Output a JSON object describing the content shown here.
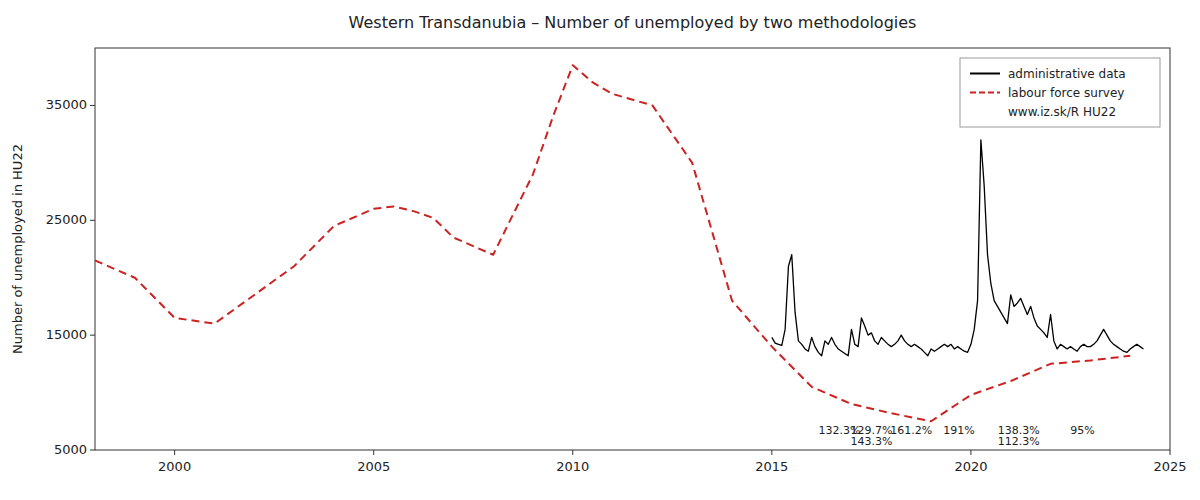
{
  "chart_data": {
    "type": "line",
    "title": "Western Transdanubia – Number of unemployed  by two methodologies",
    "y_label": "Number of unemployed in HU22",
    "xlim": [
      1998.0,
      2025.0
    ],
    "ylim": [
      5000,
      40000
    ],
    "xticks": [
      2000,
      2005,
      2010,
      2015,
      2020,
      2025
    ],
    "yticks": [
      5000,
      15000,
      25000,
      35000
    ],
    "grid": false,
    "legend": "upper right",
    "source_label": "www.iz.sk/R HU22",
    "series": [
      {
        "name": "administrative data",
        "color": "#000000",
        "line_style": "solid",
        "x": [
          2015.0,
          2015.083,
          2015.167,
          2015.25,
          2015.333,
          2015.417,
          2015.5,
          2015.583,
          2015.667,
          2015.75,
          2015.833,
          2015.917,
          2016.0,
          2016.083,
          2016.167,
          2016.25,
          2016.333,
          2016.417,
          2016.5,
          2016.583,
          2016.667,
          2016.75,
          2016.833,
          2016.917,
          2017.0,
          2017.083,
          2017.167,
          2017.25,
          2017.333,
          2017.417,
          2017.5,
          2017.583,
          2017.667,
          2017.75,
          2017.833,
          2017.917,
          2018.0,
          2018.083,
          2018.167,
          2018.25,
          2018.333,
          2018.417,
          2018.5,
          2018.583,
          2018.667,
          2018.75,
          2018.833,
          2018.917,
          2019.0,
          2019.083,
          2019.167,
          2019.25,
          2019.333,
          2019.417,
          2019.5,
          2019.583,
          2019.667,
          2019.75,
          2019.833,
          2019.917,
          2020.0,
          2020.083,
          2020.167,
          2020.25,
          2020.333,
          2020.417,
          2020.5,
          2020.583,
          2020.667,
          2020.75,
          2020.833,
          2020.917,
          2021.0,
          2021.083,
          2021.167,
          2021.25,
          2021.333,
          2021.417,
          2021.5,
          2021.583,
          2021.667,
          2021.75,
          2021.833,
          2021.917,
          2022.0,
          2022.083,
          2022.167,
          2022.25,
          2022.333,
          2022.417,
          2022.5,
          2022.583,
          2022.667,
          2022.75,
          2022.833,
          2022.917,
          2023.0,
          2023.083,
          2023.167,
          2023.25,
          2023.333,
          2023.417,
          2023.5,
          2023.583,
          2023.667,
          2023.75,
          2023.833,
          2023.917,
          2024.0,
          2024.083,
          2024.167,
          2024.25,
          2024.333
        ],
        "values": [
          14800,
          14300,
          14200,
          14100,
          15500,
          21000,
          22000,
          17000,
          14500,
          14200,
          13800,
          13600,
          14800,
          14000,
          13500,
          13200,
          14500,
          14200,
          14800,
          14200,
          13800,
          13600,
          13400,
          13200,
          15500,
          14200,
          14000,
          16500,
          15800,
          15000,
          15200,
          14500,
          14200,
          14800,
          14500,
          14200,
          14000,
          14200,
          14500,
          15000,
          14500,
          14200,
          14000,
          14200,
          14000,
          13800,
          13500,
          13200,
          13800,
          13600,
          13800,
          14000,
          14200,
          14000,
          14200,
          13800,
          14000,
          13800,
          13600,
          13500,
          14200,
          15500,
          18000,
          32000,
          28000,
          22000,
          19500,
          18000,
          17500,
          17000,
          16500,
          16000,
          18500,
          17500,
          17800,
          18200,
          17500,
          16800,
          17500,
          16500,
          15800,
          15500,
          15200,
          14800,
          16800,
          14500,
          13800,
          14200,
          14000,
          13800,
          14000,
          13800,
          13600,
          14000,
          14200,
          14000,
          14000,
          14200,
          14500,
          15000,
          15500,
          15000,
          14500,
          14200,
          14000,
          13800,
          13600,
          13500,
          13800,
          14000,
          14200,
          14000,
          13800
        ]
      },
      {
        "name": "labour force survey",
        "color": "#cc2222",
        "line_style": "dashed",
        "x": [
          1998.0,
          1999.0,
          2000.0,
          2001.0,
          2002.0,
          2003.0,
          2004.0,
          2005.0,
          2005.5,
          2006.0,
          2006.5,
          2007.0,
          2008.0,
          2009.0,
          2009.5,
          2010.0,
          2010.5,
          2011.0,
          2012.0,
          2013.0,
          2014.0,
          2015.0,
          2016.0,
          2017.0,
          2018.0,
          2019.0,
          2020.0,
          2021.0,
          2022.0,
          2023.0,
          2024.0
        ],
        "values": [
          21500,
          20000,
          16500,
          16000,
          18500,
          21000,
          24500,
          26000,
          26200,
          25800,
          25200,
          23500,
          22000,
          29000,
          34000,
          38500,
          37000,
          36000,
          35000,
          30000,
          18000,
          14000,
          10500,
          9000,
          8200,
          7500,
          9800,
          11000,
          12500,
          12800,
          13200
        ]
      }
    ],
    "annotations": [
      {
        "x": 2016.7,
        "y": 6400,
        "label": "132.3%"
      },
      {
        "x": 2017.5,
        "y": 6400,
        "label": "129.7%"
      },
      {
        "x": 2018.5,
        "y": 6400,
        "label": "161.2%"
      },
      {
        "x": 2019.7,
        "y": 6400,
        "label": "191%"
      },
      {
        "x": 2021.2,
        "y": 6400,
        "label": "138.3%"
      },
      {
        "x": 2022.8,
        "y": 6400,
        "label": "95%"
      },
      {
        "x": 2017.5,
        "y": 5400,
        "label": "143.3%"
      },
      {
        "x": 2021.2,
        "y": 5400,
        "label": "112.3%"
      }
    ]
  }
}
